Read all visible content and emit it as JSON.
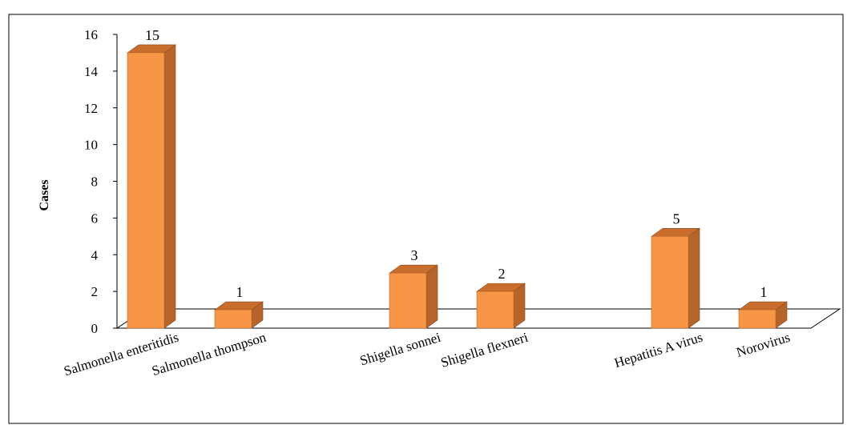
{
  "chart_data": {
    "type": "bar",
    "title": "",
    "xlabel": "",
    "ylabel": "Cases",
    "ylim": [
      0,
      16
    ],
    "yticks": [
      0,
      2,
      4,
      6,
      8,
      10,
      12,
      14,
      16
    ],
    "grid": false,
    "legend": "none",
    "three_d": true,
    "categories": [
      "Salmonella enteritidis",
      "Salmonella thompson",
      "",
      "Shigella sonnei",
      "Shigella flexneri",
      "",
      "Hepatitis A virus",
      "Norovirus"
    ],
    "values": [
      15,
      1,
      null,
      3,
      2,
      null,
      5,
      1
    ],
    "data_labels": [
      "15",
      "1",
      "",
      "3",
      "2",
      "",
      "5",
      "1"
    ],
    "colors": {
      "bar_front": "#F79646",
      "bar_side": "#B5642A",
      "bar_top": "#C86D2B",
      "floor": "#000000",
      "frame": "#000000"
    }
  }
}
